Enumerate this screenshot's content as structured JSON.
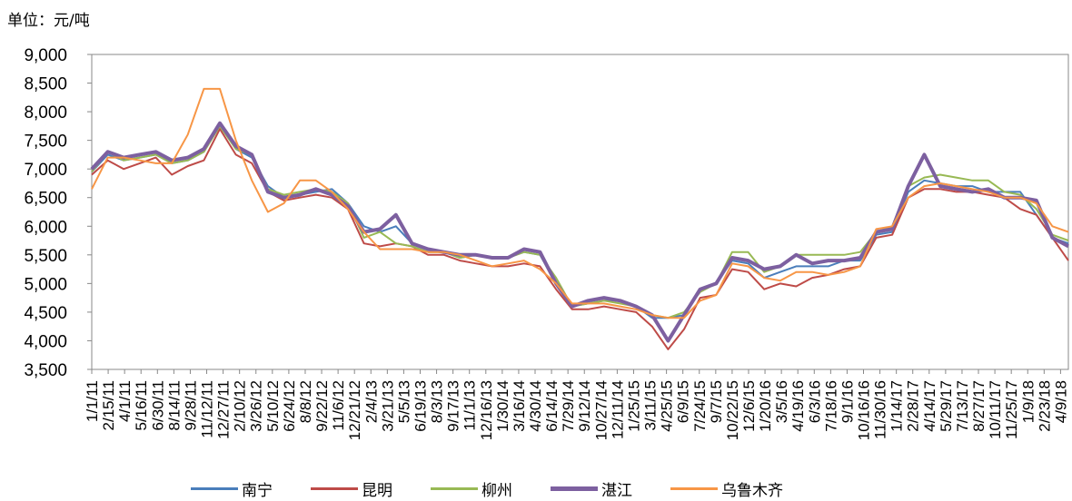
{
  "unit_label": "单位：元/吨",
  "chart_data": {
    "type": "line",
    "title": "",
    "xlabel": "",
    "ylabel": "",
    "ylim": [
      3500,
      9000
    ],
    "y_ticks": [
      "3,500",
      "4,000",
      "4,500",
      "5,000",
      "5,500",
      "6,000",
      "6,500",
      "7,000",
      "7,500",
      "8,000",
      "8,500",
      "9,000"
    ],
    "x_ticks": [
      "1/1/11",
      "2/15/11",
      "4/1/11",
      "5/16/11",
      "6/30/11",
      "8/14/11",
      "9/28/11",
      "11/12/11",
      "12/27/11",
      "2/10/12",
      "3/26/12",
      "5/10/12",
      "6/24/12",
      "8/8/12",
      "9/22/12",
      "11/6/12",
      "12/21/12",
      "2/4/13",
      "3/21/13",
      "5/5/13",
      "6/19/13",
      "8/3/13",
      "9/17/13",
      "11/1/13",
      "12/16/13",
      "1/30/14",
      "3/16/14",
      "4/30/14",
      "6/14/14",
      "7/29/14",
      "9/12/14",
      "10/27/14",
      "12/11/14",
      "1/25/15",
      "3/11/15",
      "4/25/15",
      "6/9/15",
      "7/24/15",
      "9/7/15",
      "10/22/15",
      "12/6/15",
      "1/20/16",
      "3/5/16",
      "4/19/16",
      "6/3/16",
      "7/18/16",
      "9/1/16",
      "10/16/16",
      "11/30/16",
      "1/14/17",
      "2/28/17",
      "4/14/17",
      "5/29/17",
      "7/13/17",
      "8/27/17",
      "10/11/17",
      "11/25/17",
      "1/9/18",
      "2/23/18",
      "4/9/18"
    ],
    "grid": false,
    "legend_position": "bottom",
    "series": [
      {
        "name": "南宁",
        "color": "#4a7ebb",
        "width": 2,
        "values": [
          6950,
          7250,
          7150,
          7200,
          7250,
          7100,
          7150,
          7300,
          7800,
          7350,
          7200,
          6700,
          6500,
          6550,
          6600,
          6650,
          6400,
          6000,
          5900,
          6000,
          5700,
          5600,
          5550,
          5450,
          5500,
          5450,
          5450,
          5550,
          5500,
          5000,
          4600,
          4650,
          4700,
          4700,
          4600,
          4400,
          4400,
          4450,
          4900,
          5000,
          5400,
          5350,
          5100,
          5200,
          5300,
          5300,
          5300,
          5400,
          5400,
          5850,
          5900,
          6600,
          6800,
          6750,
          6700,
          6700,
          6600,
          6600,
          6600,
          6200,
          5800,
          5700
        ]
      },
      {
        "name": "昆明",
        "color": "#be4b48",
        "width": 2,
        "values": [
          6900,
          7150,
          7000,
          7100,
          7200,
          6900,
          7050,
          7150,
          7700,
          7250,
          7100,
          6600,
          6450,
          6500,
          6550,
          6500,
          6300,
          5700,
          5650,
          5700,
          5650,
          5500,
          5500,
          5400,
          5350,
          5300,
          5300,
          5350,
          5300,
          4900,
          4550,
          4550,
          4600,
          4550,
          4500,
          4250,
          3850,
          4200,
          4750,
          4800,
          5250,
          5200,
          4900,
          5000,
          4950,
          5100,
          5150,
          5250,
          5300,
          5800,
          5850,
          6500,
          6650,
          6650,
          6600,
          6600,
          6550,
          6500,
          6300,
          6200,
          5800,
          5400
        ]
      },
      {
        "name": "柳州",
        "color": "#98b954",
        "width": 2,
        "values": [
          6950,
          7300,
          7150,
          7200,
          7250,
          7100,
          7150,
          7300,
          7750,
          7350,
          7250,
          6650,
          6550,
          6600,
          6650,
          6600,
          6400,
          5800,
          5900,
          5700,
          5650,
          5550,
          5550,
          5450,
          5500,
          5450,
          5450,
          5550,
          5500,
          5100,
          4600,
          4650,
          4700,
          4650,
          4600,
          4450,
          4400,
          4500,
          4850,
          5000,
          5550,
          5550,
          5200,
          5300,
          5500,
          5500,
          5500,
          5500,
          5550,
          5900,
          6000,
          6700,
          6850,
          6900,
          6850,
          6800,
          6800,
          6600,
          6550,
          6300,
          5850,
          5750
        ]
      },
      {
        "name": "湛江",
        "color": "#7d60a0",
        "width": 4,
        "values": [
          7000,
          7300,
          7200,
          7250,
          7300,
          7150,
          7200,
          7350,
          7800,
          7400,
          7250,
          6600,
          6500,
          6550,
          6650,
          6550,
          6350,
          5900,
          5950,
          6200,
          5700,
          5600,
          5550,
          5500,
          5500,
          5450,
          5450,
          5600,
          5550,
          5000,
          4600,
          4700,
          4750,
          4700,
          4600,
          4450,
          4000,
          4450,
          4900,
          5000,
          5450,
          5400,
          5250,
          5300,
          5500,
          5350,
          5400,
          5400,
          5450,
          5900,
          5950,
          6700,
          7250,
          6700,
          6650,
          6600,
          6650,
          6500,
          6500,
          6450,
          5800,
          5650
        ]
      },
      {
        "name": "乌鲁木齐",
        "color": "#f79646",
        "width": 2,
        "values": [
          6650,
          7200,
          7200,
          7150,
          7100,
          7100,
          7600,
          8400,
          8400,
          7500,
          6800,
          6250,
          6400,
          6800,
          6800,
          6600,
          6300,
          5900,
          5600,
          5600,
          5600,
          5550,
          5550,
          5500,
          5400,
          5300,
          5350,
          5400,
          5250,
          5000,
          4650,
          4650,
          4650,
          4600,
          4550,
          4450,
          4400,
          4400,
          4700,
          4800,
          5350,
          5300,
          5100,
          5050,
          5200,
          5200,
          5150,
          5200,
          5300,
          5950,
          6000,
          6500,
          6700,
          6750,
          6700,
          6650,
          6600,
          6500,
          6500,
          6400,
          6000,
          5900
        ]
      }
    ]
  }
}
